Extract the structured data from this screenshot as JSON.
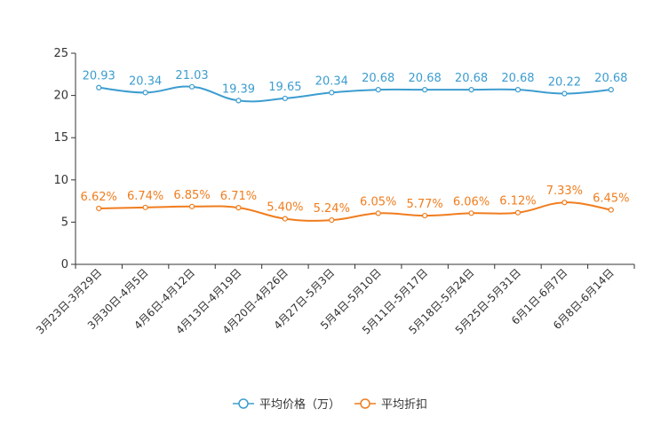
{
  "chart_data": {
    "type": "line",
    "categories": [
      "3月23日-3月29日",
      "3月30日-4月5日",
      "4月6日-4月12日",
      "4月13日-4月19日",
      "4月20日-4月26日",
      "4月27日-5月3日",
      "5月4日-5月10日",
      "5月11日-5月17日",
      "5月18日-5月24日",
      "5月25日-5月31日",
      "6月1日-6月7日",
      "6月8日-6月14日"
    ],
    "ylim": [
      0,
      25
    ],
    "yticks": [
      0,
      5,
      10,
      15,
      20,
      25
    ],
    "series": [
      {
        "name": "平均价格（万）",
        "color": "#3c9dd0",
        "values": [
          20.93,
          20.34,
          21.03,
          19.39,
          19.65,
          20.34,
          20.68,
          20.68,
          20.68,
          20.68,
          20.22,
          20.68
        ],
        "labels": [
          "20.93",
          "20.34",
          "21.03",
          "19.39",
          "19.65",
          "20.34",
          "20.68",
          "20.68",
          "20.68",
          "20.68",
          "20.22",
          "20.68"
        ]
      },
      {
        "name": "平均折扣",
        "color": "#f07d1e",
        "values": [
          6.62,
          6.74,
          6.85,
          6.71,
          5.4,
          5.24,
          6.05,
          5.77,
          6.06,
          6.12,
          7.33,
          6.45
        ],
        "labels": [
          "6.62%",
          "6.74%",
          "6.85%",
          "6.71%",
          "5.40%",
          "5.24%",
          "6.05%",
          "5.77%",
          "6.06%",
          "6.12%",
          "7.33%",
          "6.45%"
        ]
      }
    ],
    "legend_position": "bottom-center"
  }
}
